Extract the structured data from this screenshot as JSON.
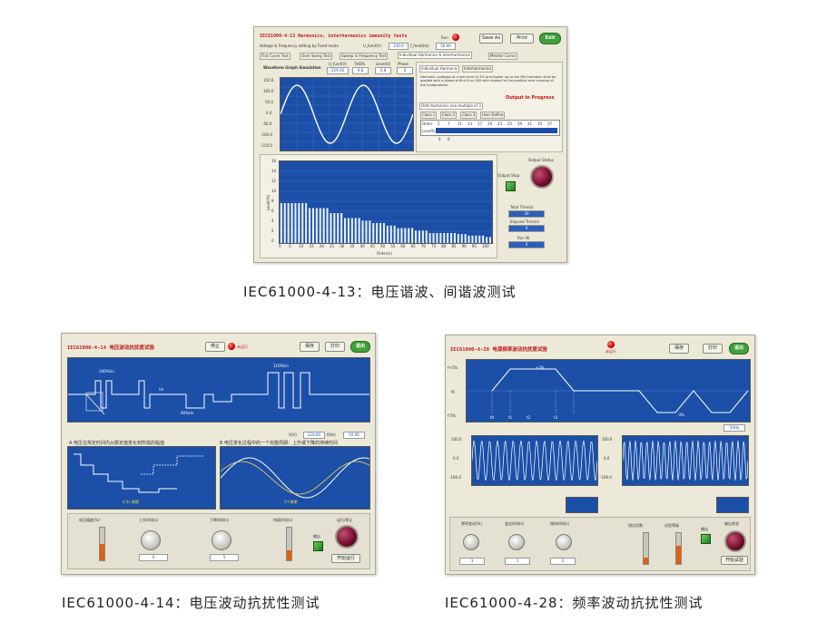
{
  "colors": {
    "plot_bg": "#1b4fa8",
    "title_red": "#c01818",
    "accent_green": "#3fa13a"
  },
  "screen1": {
    "title": "IEC61000-4-13 Harmonics, interharmonics immunity tests",
    "row_label": "Voltage & Frequency setting by Fixed mode",
    "inputs": [
      {
        "label": "U_fund(V)",
        "value": "230.0"
      },
      {
        "label": "f_fund(Hz)",
        "value": "50.00"
      }
    ],
    "status_label": "Run",
    "buttons": {
      "save": "Save As",
      "print": "Print",
      "exit": "Exit"
    },
    "tabs": [
      "Flat Curve Test",
      "Over Swing Test",
      "Sweep in Frequency Test",
      "Individual Harmonics & Interharmonics",
      "Meister Curve"
    ],
    "wave_title": "Waveform Graph Simulation",
    "stats": [
      {
        "label": "U_fund(V)",
        "value": "229.16"
      },
      {
        "label": "THD%",
        "value": "9.8"
      },
      {
        "label": "Level(V)",
        "value": "0.8"
      },
      {
        "label": "Phase",
        "value": "0"
      }
    ],
    "wave_yticks": [
      "150.0",
      "100.0",
      "50.0",
      "0.0",
      "-50.0",
      "-100.0",
      "-150.0"
    ],
    "sub_tabs": [
      "Individual Harmonic",
      "Interharmonics"
    ],
    "note": "Harmonic voltages at a test level of 3% and higher up to the 9th harmonic shall be applied with a phase shift of 0 or 180 with respect to the positive zero crossing of the fundamental.",
    "info_red": "Output in Progress",
    "select_label": "Odd harmonics non-multiple of 3",
    "class_tabs": [
      "Class 1",
      "Class 2",
      "Class 3",
      "User Define"
    ],
    "order_label": "Order",
    "level_label": "Level%",
    "orders": [
      "5",
      "7",
      "11",
      "13",
      "17",
      "19",
      "23",
      "25",
      "29",
      "31",
      "35",
      "37"
    ],
    "order_extra": [
      "0",
      "0"
    ],
    "bar_ylabel": "Level(%)",
    "bar_xlabel": "Order(n)",
    "bar_xticks": [
      "0",
      "5",
      "10",
      "15",
      "20",
      "25",
      "30",
      "35",
      "40",
      "45",
      "50",
      "55",
      "60",
      "65",
      "70",
      "75",
      "80",
      "85",
      "90",
      "95",
      "100"
    ],
    "bar_yticks": [
      "16",
      "14",
      "12",
      "10",
      "8",
      "6",
      "4",
      "2",
      "0"
    ],
    "output_label": "Output Status",
    "stop_label": "Output Stop",
    "readouts": [
      {
        "label": "Total Time(s)",
        "value": "30"
      },
      {
        "label": "Elapsed Time(s)",
        "value": "0"
      },
      {
        "label": "Run Nr.",
        "value": "0"
      }
    ],
    "bar_values": [
      8,
      8,
      8,
      8,
      8,
      8,
      8,
      8,
      7,
      7,
      7,
      7,
      7,
      7,
      6,
      6,
      6,
      6,
      5,
      5,
      5,
      5,
      5,
      4.5,
      4.5,
      4.5,
      4,
      4,
      4,
      4,
      3.5,
      3.5,
      3.5,
      3,
      3,
      3,
      3,
      3,
      2.5,
      2.5,
      2.5,
      2.5,
      2,
      2,
      2,
      2,
      2,
      2,
      2,
      2,
      1.8,
      1.8,
      1.8,
      1.5,
      1.5,
      1.5,
      1.5,
      1.5,
      1.2,
      1.2
    ]
  },
  "screen2": {
    "title": "IEC61000-4-14 电压波动抗扰度试验",
    "stop_btn": "停止",
    "status": "未运行",
    "buttons": {
      "save": "保存",
      "print": "打印",
      "exit": "退出"
    },
    "wave_labels": [
      "100%Un",
      "90%Un",
      "110%Un",
      "Un"
    ],
    "panelA_title": "A  电压在规定时间内从额定值变化到所需的幅值",
    "panelB_title": "B  电压变化过程中的一个完整周期：上升或下降的持续时间",
    "panelB_readouts": [
      {
        "label": "U(V)",
        "value": "220.00"
      },
      {
        "label": "f(Hz)",
        "value": "50.00"
      }
    ],
    "panelA_foot": "0.5s 周期",
    "panelB_foot": "1个周期",
    "controls": [
      {
        "label": "电压幅度(%)",
        "thermo": 0.5
      },
      {
        "label": "上升时间(s)",
        "knob": "0"
      },
      {
        "label": "下降时间(s)",
        "knob": "5"
      },
      {
        "label": "持续时间(s)",
        "thermo": 0.3
      }
    ],
    "out_label": "输出",
    "run_label": "运行/停止",
    "run_btn": "开始运行"
  },
  "screen3": {
    "title": "IEC61000-4-28 电源频率波动抗扰度试验",
    "status": "未运行",
    "buttons": {
      "save": "保存",
      "print": "打印",
      "exit": "退出"
    },
    "yticks": [
      "f+5%",
      "f0",
      "f-5%"
    ],
    "peaks": [
      "+3%",
      "-3%"
    ],
    "markers": [
      "t0",
      "t1",
      "t2",
      "t3"
    ],
    "unit": "50Hz",
    "low_yticks": [
      "100.0",
      "50.0",
      "0.0",
      "-50.0",
      "-100.0"
    ],
    "controls": [
      {
        "label": "频率变化(%)",
        "knob": "3"
      },
      {
        "label": "变化时间(s)",
        "knob": "1"
      },
      {
        "label": "保持时间(s)",
        "knob": "2"
      },
      {
        "label": "测试次数",
        "thermo": 0.2
      },
      {
        "label": "试验等级",
        "thermo": 0.6
      }
    ],
    "out_label": "输出",
    "run_label": "输出状态",
    "run_btn": "开始试验"
  },
  "captions": {
    "c1": "IEC61000-4-13：电压谐波、间谐波测试",
    "c2": "IEC61000-4-14：电压波动抗扰性测试",
    "c3": "IEC61000-4-28：频率波动抗扰性测试"
  }
}
